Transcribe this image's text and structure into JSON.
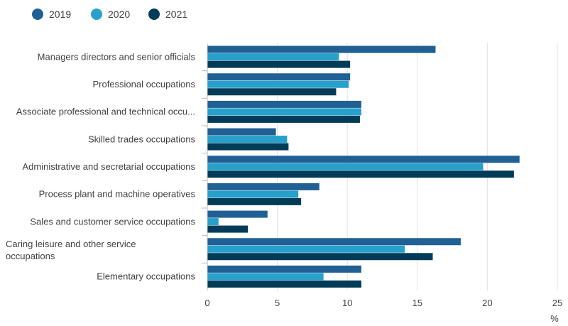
{
  "chart_data": {
    "type": "bar",
    "orientation": "horizontal",
    "categories": [
      "Managers directors and senior officials",
      "Professional occupations",
      "Associate professional and technical occu...",
      "Skilled trades occupations",
      "Administrative and secretarial occupations",
      "Process plant and machine operatives",
      "Sales and customer service occupations",
      "Caring leisure and other service occupations",
      "Elementary occupations"
    ],
    "series": [
      {
        "name": "2019",
        "color": "#206095",
        "values": [
          16.3,
          10.2,
          11.0,
          4.9,
          22.3,
          8.0,
          4.3,
          18.1,
          11.0
        ]
      },
      {
        "name": "2020",
        "color": "#27a0cc",
        "values": [
          9.4,
          10.1,
          11.0,
          5.7,
          19.7,
          6.5,
          0.8,
          14.1,
          8.3
        ]
      },
      {
        "name": "2021",
        "color": "#003c57",
        "values": [
          10.2,
          9.2,
          10.9,
          5.8,
          21.9,
          6.7,
          2.9,
          16.1,
          11.0
        ]
      }
    ],
    "xlim": [
      0,
      25
    ],
    "xticks": [
      0,
      5,
      10,
      15,
      20,
      25
    ],
    "xlabel": "%",
    "grid": true,
    "legend_position": "top-left"
  }
}
